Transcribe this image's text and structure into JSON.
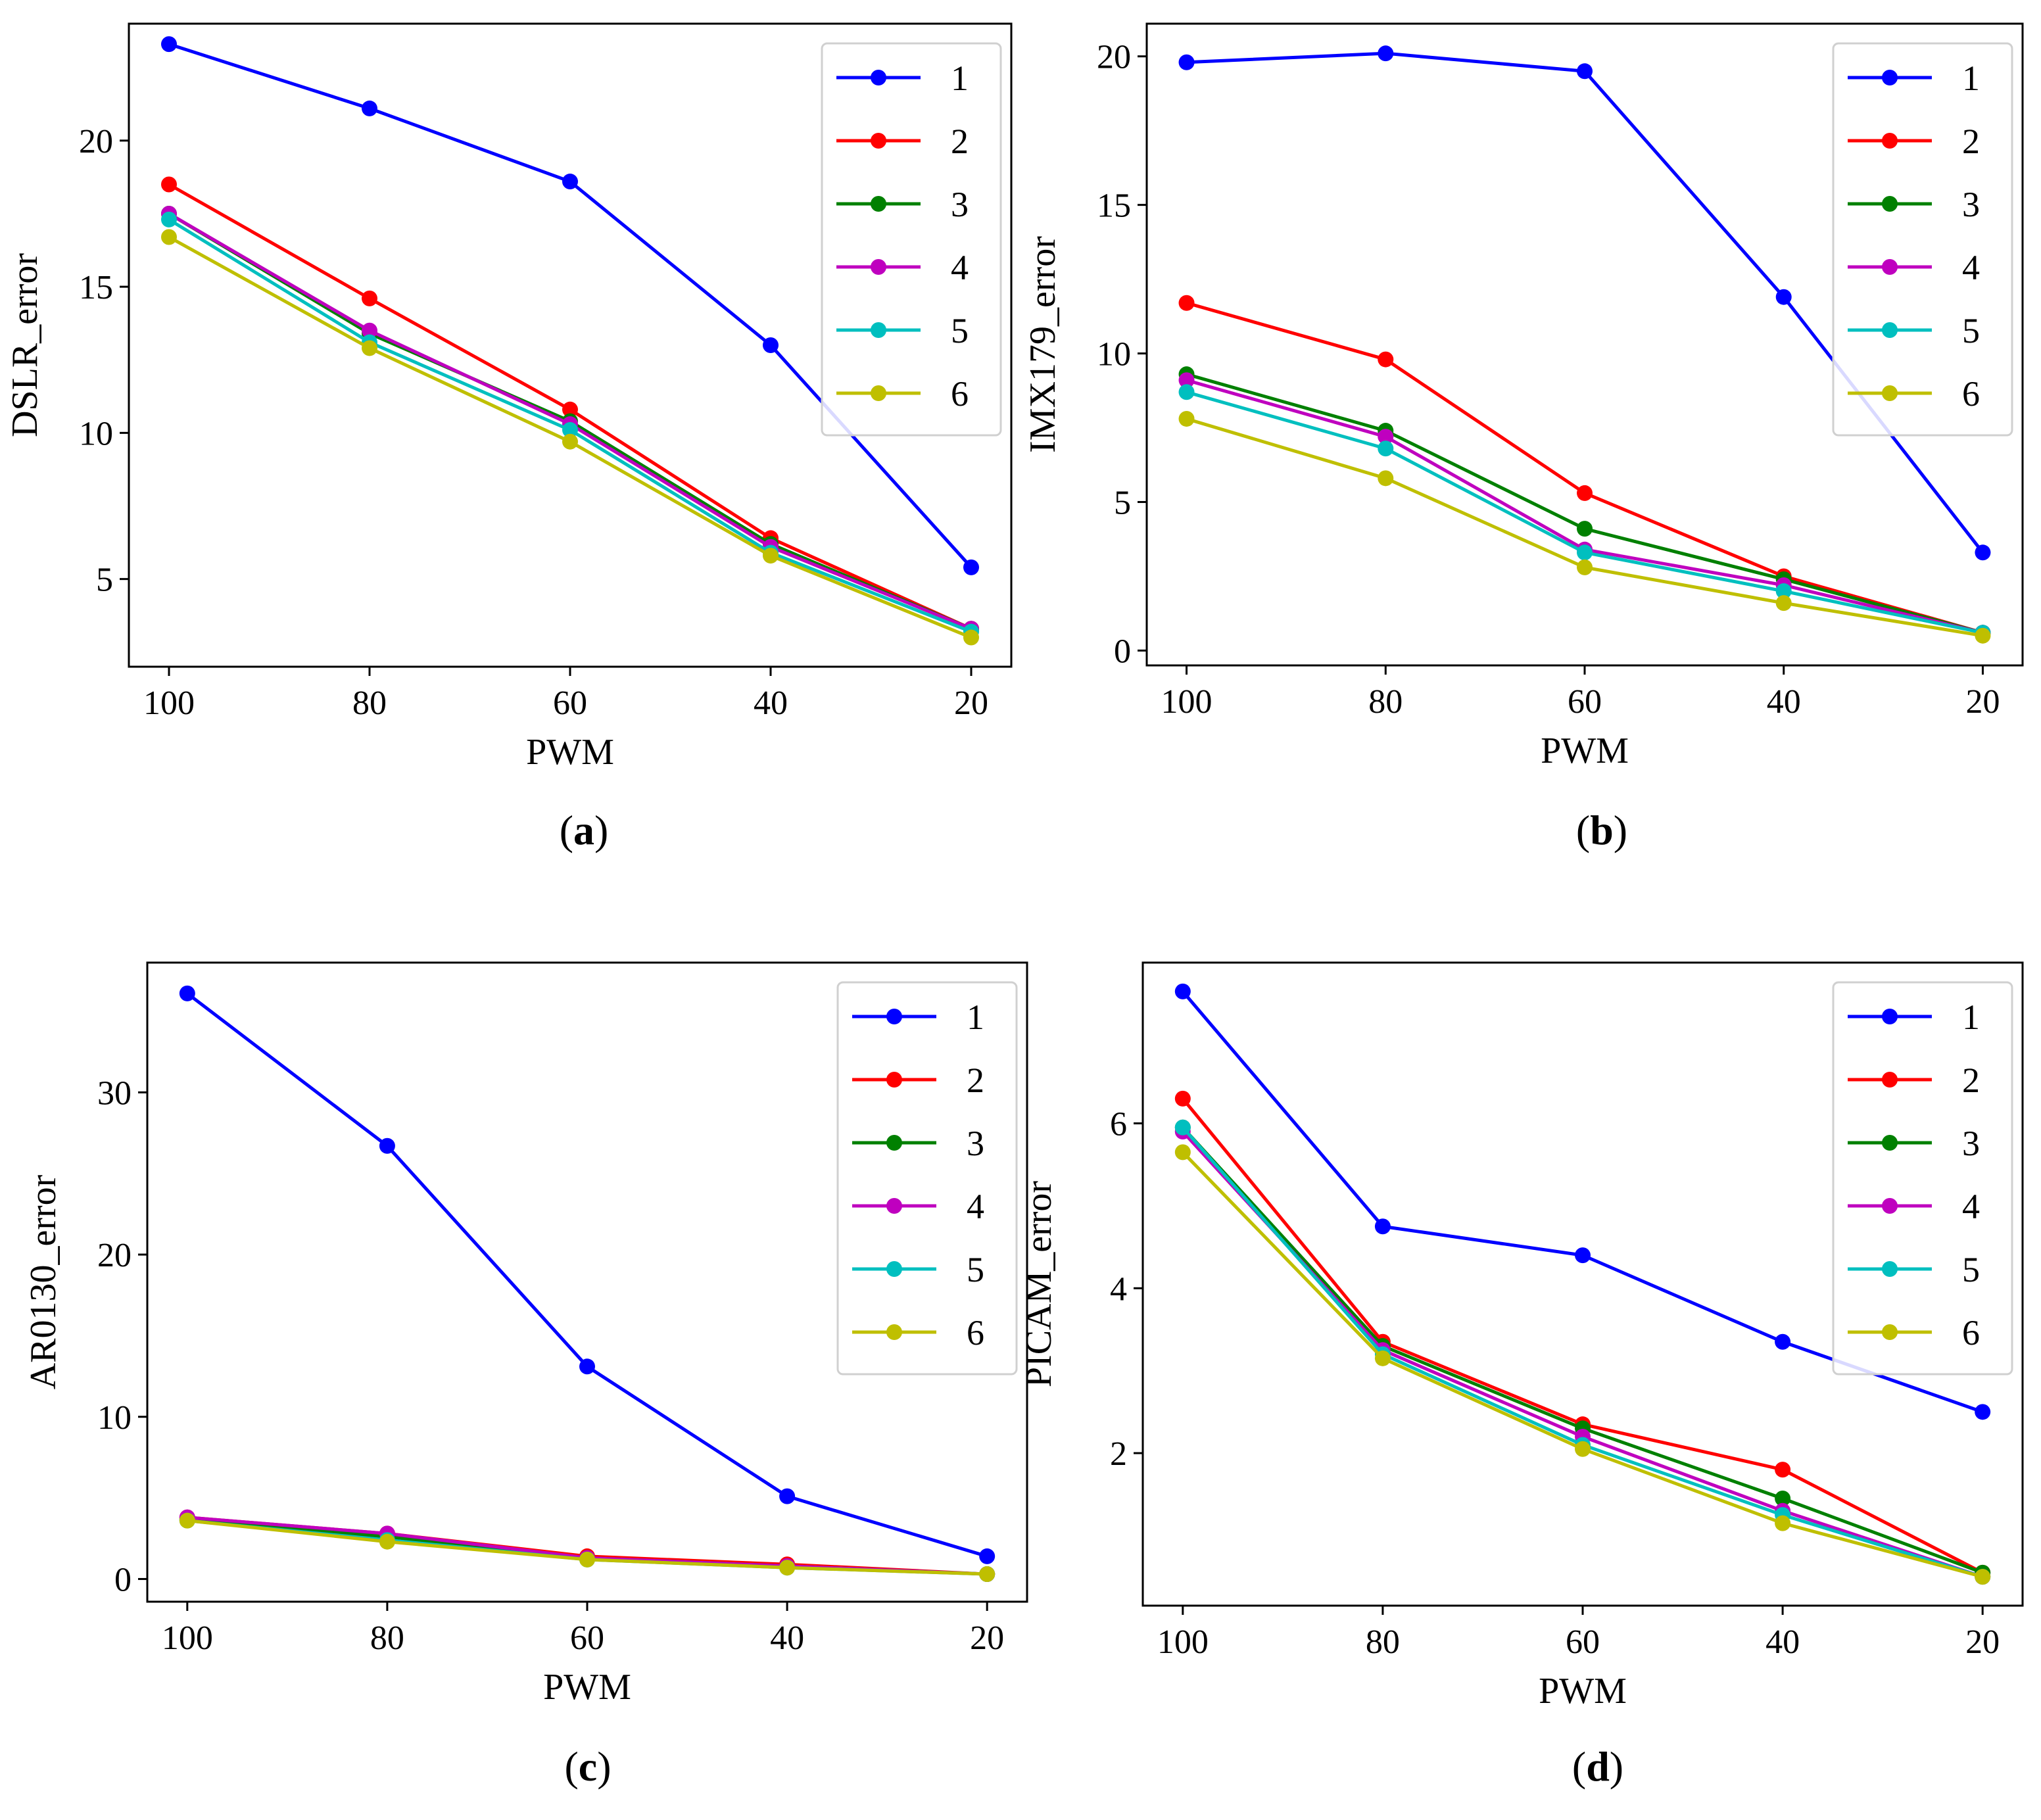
{
  "figure": {
    "captions": [
      {
        "pre": "(",
        "letter": "a",
        "post": ")"
      },
      {
        "pre": "(",
        "letter": "b",
        "post": ")"
      },
      {
        "pre": "(",
        "letter": "c",
        "post": ")"
      },
      {
        "pre": "(",
        "letter": "d",
        "post": ")"
      }
    ]
  },
  "chart_data": [
    {
      "type": "line",
      "xlabel": "PWM",
      "ylabel": "DSLR_error",
      "x": [
        100,
        80,
        60,
        40,
        20
      ],
      "x_ticks": [
        "100",
        "80",
        "60",
        "40",
        "20"
      ],
      "x_reversed": true,
      "y_ticks": [
        "5",
        "10",
        "15",
        "20"
      ],
      "y_tick_values": [
        5,
        10,
        15,
        20
      ],
      "ylim": [
        2,
        24
      ],
      "xlim": [
        104,
        16
      ],
      "legend_position": "top-right",
      "series": [
        {
          "name": "1",
          "color": "#0000ff",
          "values": [
            23.3,
            21.1,
            18.6,
            13.0,
            5.4
          ]
        },
        {
          "name": "2",
          "color": "#ff0000",
          "values": [
            18.5,
            14.6,
            10.8,
            6.4,
            3.3
          ]
        },
        {
          "name": "3",
          "color": "#008000",
          "values": [
            17.5,
            13.4,
            10.4,
            6.2,
            3.3
          ]
        },
        {
          "name": "4",
          "color": "#bf00bf",
          "values": [
            17.5,
            13.5,
            10.3,
            6.1,
            3.3
          ]
        },
        {
          "name": "5",
          "color": "#00bfbf",
          "values": [
            17.3,
            13.1,
            10.1,
            5.9,
            3.2
          ]
        },
        {
          "name": "6",
          "color": "#bfbf00",
          "values": [
            16.7,
            12.9,
            9.7,
            5.8,
            3.0
          ]
        }
      ]
    },
    {
      "type": "line",
      "xlabel": "PWM",
      "ylabel": "IMX179_error",
      "x": [
        100,
        80,
        60,
        40,
        20
      ],
      "x_ticks": [
        "100",
        "80",
        "60",
        "40",
        "20"
      ],
      "x_reversed": true,
      "y_ticks": [
        "0",
        "5",
        "10",
        "15",
        "20"
      ],
      "y_tick_values": [
        0,
        5,
        10,
        15,
        20
      ],
      "ylim": [
        -0.5,
        21.1
      ],
      "xlim": [
        104,
        16
      ],
      "legend_position": "top-right",
      "series": [
        {
          "name": "1",
          "color": "#0000ff",
          "values": [
            19.8,
            20.1,
            19.5,
            11.9,
            3.3
          ]
        },
        {
          "name": "2",
          "color": "#ff0000",
          "values": [
            11.7,
            9.8,
            5.3,
            2.5,
            0.6
          ]
        },
        {
          "name": "3",
          "color": "#008000",
          "values": [
            9.3,
            7.4,
            4.1,
            2.4,
            0.6
          ]
        },
        {
          "name": "4",
          "color": "#bf00bf",
          "values": [
            9.1,
            7.2,
            3.4,
            2.2,
            0.6
          ]
        },
        {
          "name": "5",
          "color": "#00bfbf",
          "values": [
            8.7,
            6.8,
            3.3,
            2.0,
            0.6
          ]
        },
        {
          "name": "6",
          "color": "#bfbf00",
          "values": [
            7.8,
            5.8,
            2.8,
            1.6,
            0.5
          ]
        }
      ]
    },
    {
      "type": "line",
      "xlabel": "PWM",
      "ylabel": "AR0130_error",
      "x": [
        100,
        80,
        60,
        40,
        20
      ],
      "x_ticks": [
        "100",
        "80",
        "60",
        "40",
        "20"
      ],
      "x_reversed": true,
      "y_ticks": [
        "0",
        "10",
        "20",
        "30"
      ],
      "y_tick_values": [
        0,
        10,
        20,
        30
      ],
      "ylim": [
        -1.4,
        38
      ],
      "xlim": [
        104,
        16
      ],
      "legend_position": "top-right",
      "series": [
        {
          "name": "1",
          "color": "#0000ff",
          "values": [
            36.1,
            26.7,
            13.1,
            5.1,
            1.4
          ]
        },
        {
          "name": "2",
          "color": "#ff0000",
          "values": [
            3.8,
            2.8,
            1.4,
            0.9,
            0.3
          ]
        },
        {
          "name": "3",
          "color": "#008000",
          "values": [
            3.7,
            2.6,
            1.3,
            0.8,
            0.3
          ]
        },
        {
          "name": "4",
          "color": "#bf00bf",
          "values": [
            3.8,
            2.8,
            1.3,
            0.8,
            0.3
          ]
        },
        {
          "name": "5",
          "color": "#00bfbf",
          "values": [
            3.6,
            2.4,
            1.2,
            0.7,
            0.3
          ]
        },
        {
          "name": "6",
          "color": "#bfbf00",
          "values": [
            3.6,
            2.3,
            1.2,
            0.7,
            0.3
          ]
        }
      ]
    },
    {
      "type": "line",
      "xlabel": "PWM",
      "ylabel": "PICAM_error",
      "x": [
        100,
        80,
        60,
        40,
        20
      ],
      "x_ticks": [
        "100",
        "80",
        "60",
        "40",
        "20"
      ],
      "x_reversed": true,
      "y_ticks": [
        "2",
        "4",
        "6"
      ],
      "y_tick_values": [
        2,
        4,
        6
      ],
      "ylim": [
        0.15,
        7.95
      ],
      "xlim": [
        104,
        16
      ],
      "legend_position": "top-right",
      "series": [
        {
          "name": "1",
          "color": "#0000ff",
          "values": [
            7.6,
            4.75,
            4.4,
            3.35,
            2.5
          ]
        },
        {
          "name": "2",
          "color": "#ff0000",
          "values": [
            6.3,
            3.35,
            2.35,
            1.8,
            0.55
          ]
        },
        {
          "name": "3",
          "color": "#008000",
          "values": [
            5.95,
            3.3,
            2.3,
            1.45,
            0.55
          ]
        },
        {
          "name": "4",
          "color": "#bf00bf",
          "values": [
            5.9,
            3.25,
            2.2,
            1.3,
            0.5
          ]
        },
        {
          "name": "5",
          "color": "#00bfbf",
          "values": [
            5.95,
            3.2,
            2.1,
            1.25,
            0.5
          ]
        },
        {
          "name": "6",
          "color": "#bfbf00",
          "values": [
            5.65,
            3.15,
            2.05,
            1.15,
            0.5
          ]
        }
      ]
    }
  ]
}
